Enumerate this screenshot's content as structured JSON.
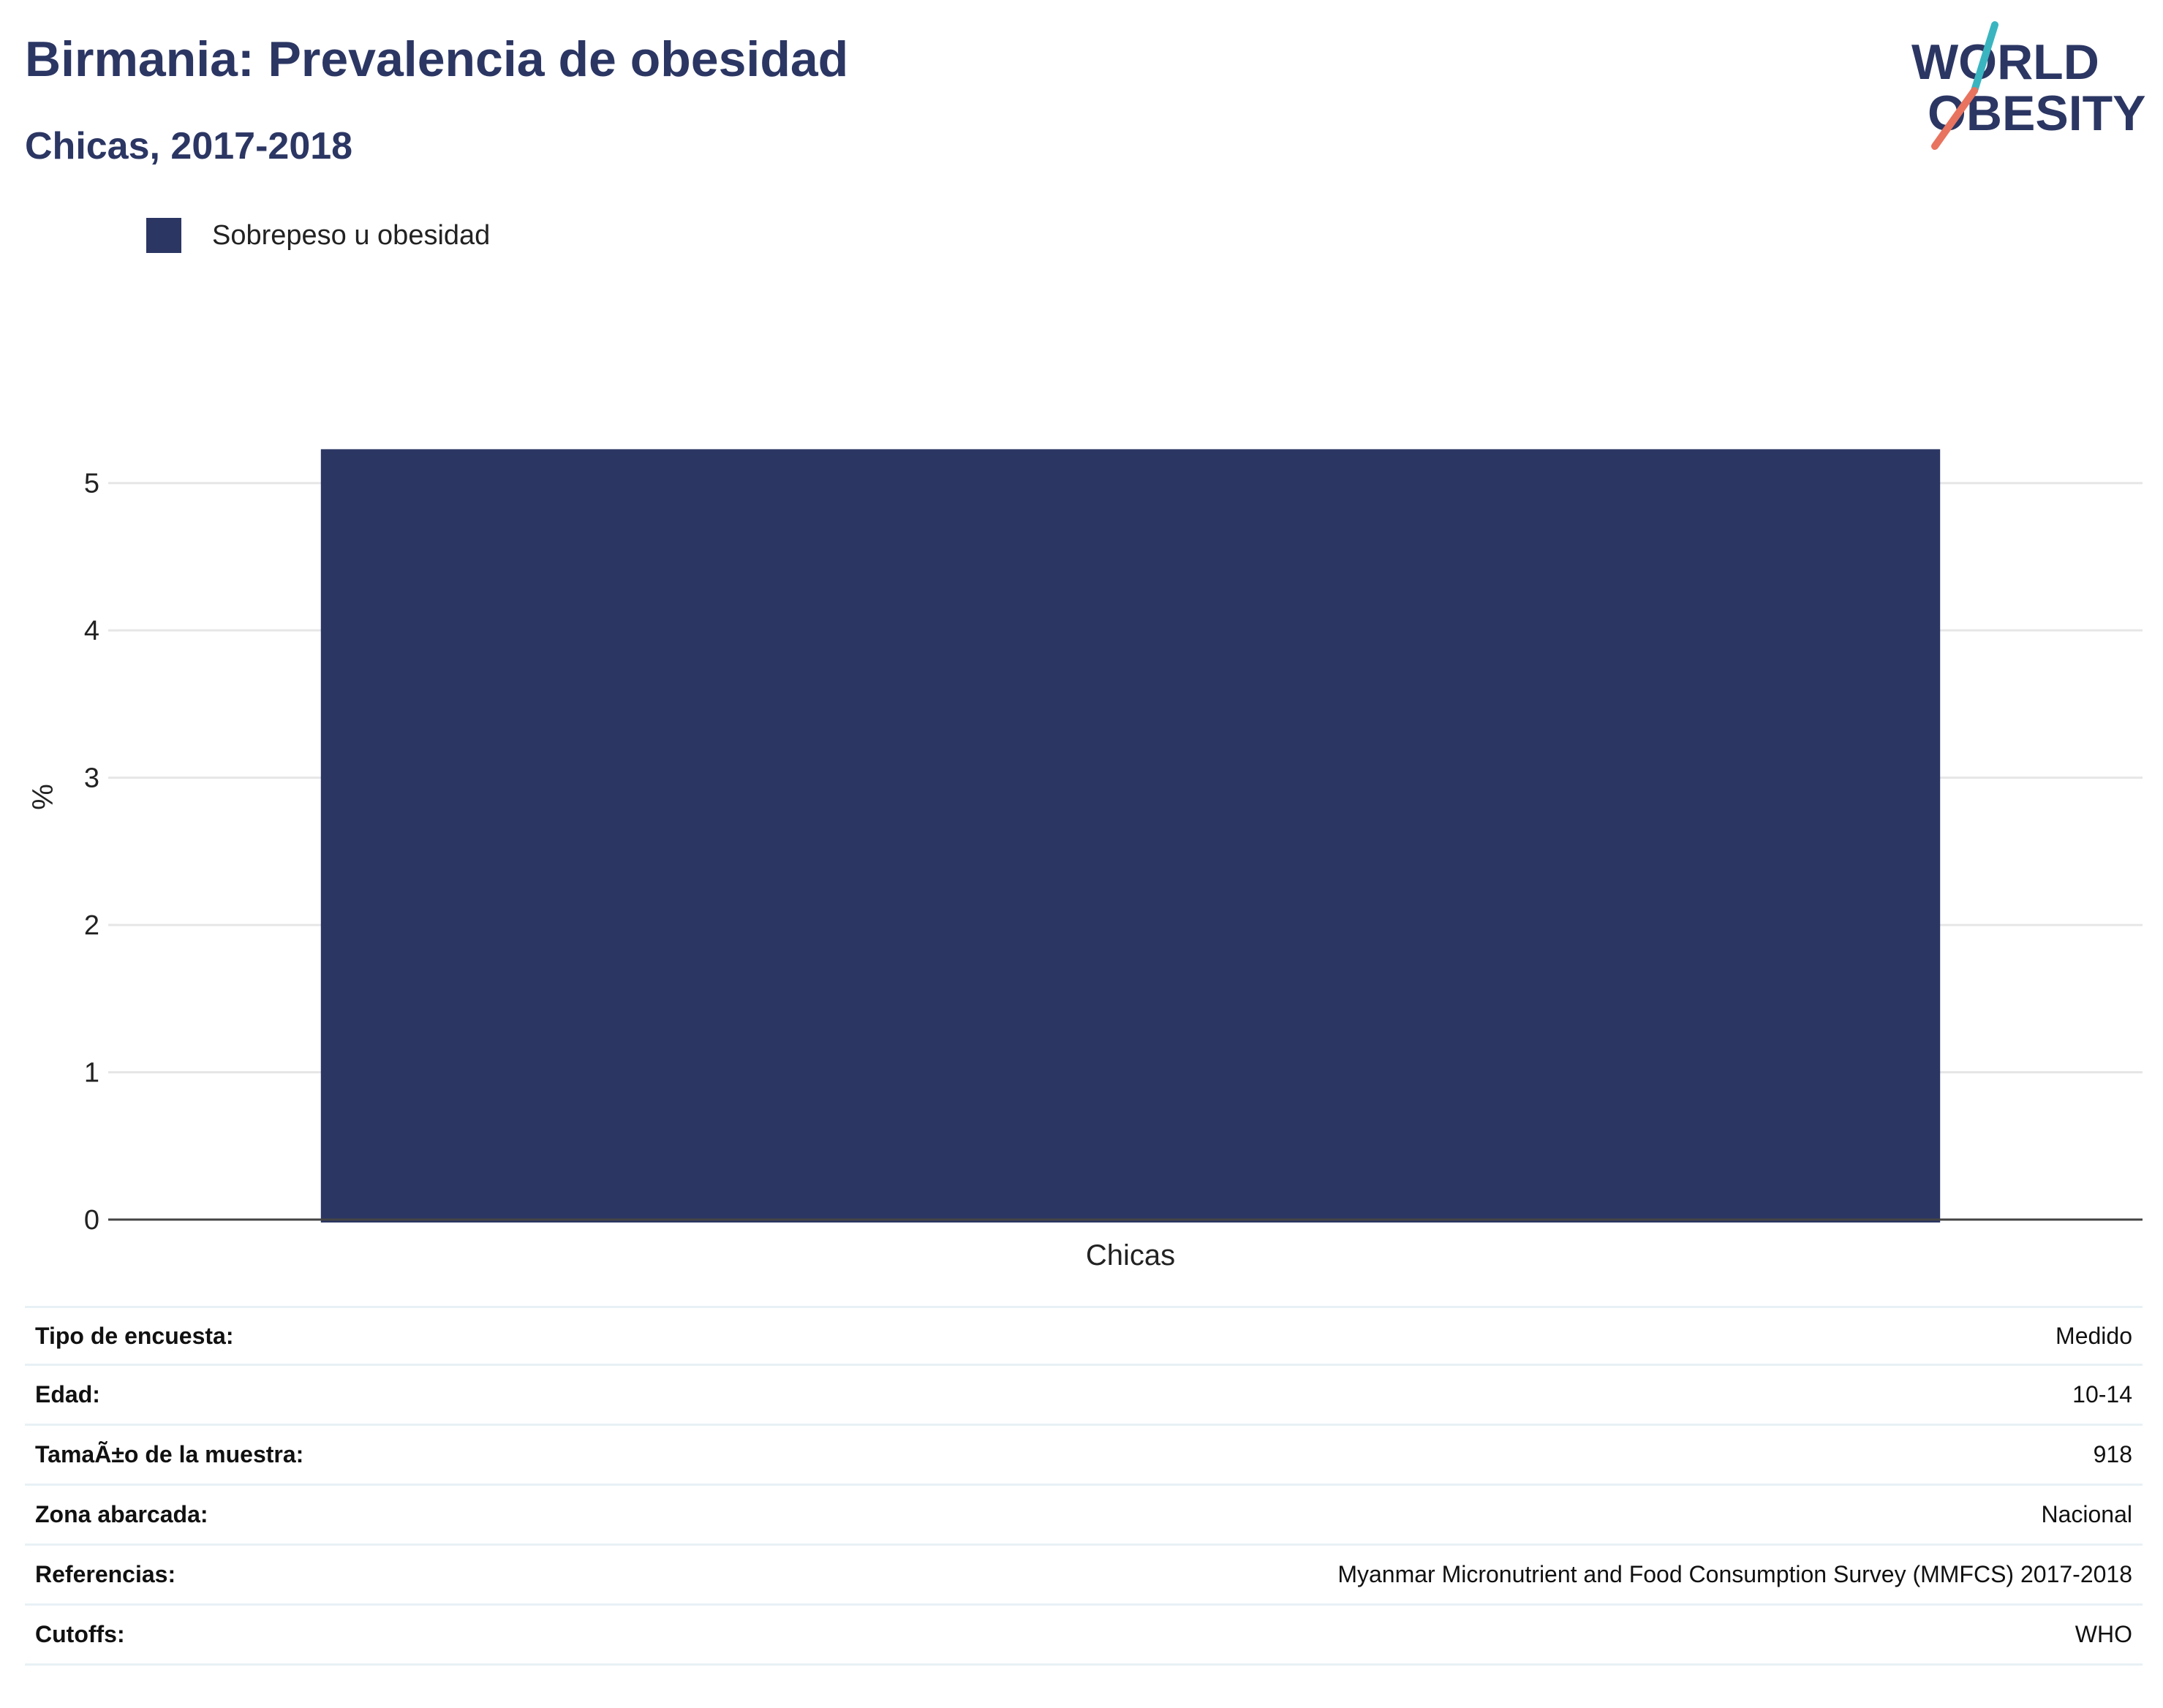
{
  "header": {
    "title": "Birmania: Prevalencia de obesidad",
    "subtitle": "Chicas, 2017-2018"
  },
  "logo": {
    "line1": "WORLD",
    "line2": "OBESITY",
    "colors": {
      "text": "#2b3663",
      "slash_top": "#3ab5c0",
      "slash_bottom": "#e8735f"
    }
  },
  "legend": {
    "label": "Sobrepeso u obesidad",
    "color": "#2b3663"
  },
  "chart_data": {
    "type": "bar",
    "categories": [
      "Chicas"
    ],
    "series": [
      {
        "name": "Sobrepeso u obesidad",
        "values": [
          5.23
        ],
        "color": "#2b3663"
      }
    ],
    "ylabel": "%",
    "xlabel": "",
    "ylim": [
      0,
      5.5
    ],
    "yticks": [
      0,
      1,
      2,
      3,
      4,
      5
    ],
    "grid": true,
    "legend_position": "top-left"
  },
  "info": [
    {
      "key": "Tipo de encuesta:",
      "value": "Medido"
    },
    {
      "key": "Edad:",
      "value": "10-14"
    },
    {
      "key": "TamaÃ±o de la muestra:",
      "value": "918"
    },
    {
      "key": "Zona abarcada:",
      "value": "Nacional"
    },
    {
      "key": "Referencias:",
      "value": "Myanmar Micronutrient and Food Consumption Survey (MMFCS) 2017-2018"
    },
    {
      "key": "Cutoffs:",
      "value": "WHO"
    }
  ]
}
